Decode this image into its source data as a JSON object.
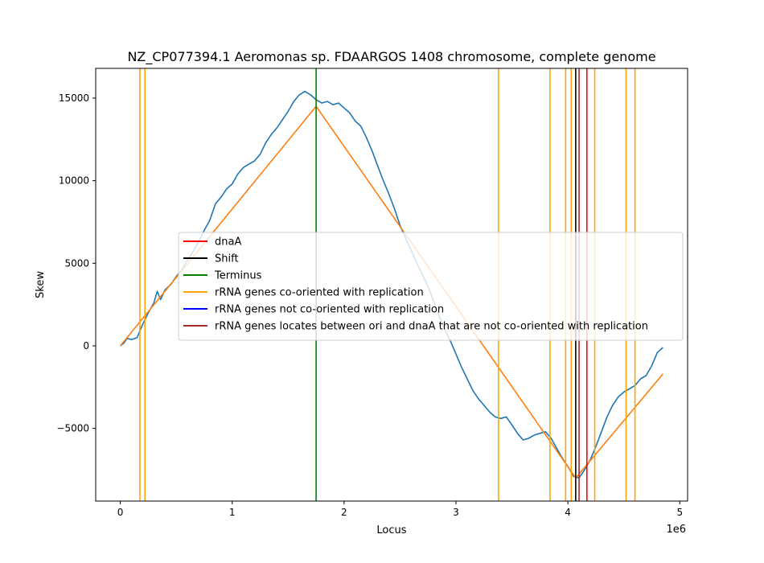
{
  "chart_data": {
    "type": "line",
    "title": "NZ_CP077394.1 Aeromonas sp. FDAARGOS 1408 chromosome, complete genome",
    "xlabel": "Locus",
    "ylabel": "Skew",
    "x_offset_label": "1e6",
    "xlim": [
      -220000,
      5070000
    ],
    "ylim": [
      -9400,
      16800
    ],
    "x_ticks": [
      0,
      1000000,
      2000000,
      3000000,
      4000000,
      5000000
    ],
    "x_tick_labels": [
      "0",
      "1",
      "2",
      "3",
      "4",
      "5"
    ],
    "y_ticks": [
      -5000,
      0,
      5000,
      10000,
      15000
    ],
    "y_tick_labels": [
      "−5000",
      "0",
      "5000",
      "10000",
      "15000"
    ],
    "grid": false,
    "legend_placement": "center",
    "series": [
      {
        "color": "#1f77b4",
        "points": [
          [
            0,
            0
          ],
          [
            30000,
            150
          ],
          [
            60000,
            450
          ],
          [
            100000,
            380
          ],
          [
            150000,
            500
          ],
          [
            200000,
            1300
          ],
          [
            250000,
            2000
          ],
          [
            300000,
            2600
          ],
          [
            330000,
            3300
          ],
          [
            360000,
            2800
          ],
          [
            400000,
            3400
          ],
          [
            450000,
            3700
          ],
          [
            500000,
            4200
          ],
          [
            550000,
            4600
          ],
          [
            600000,
            5200
          ],
          [
            650000,
            5700
          ],
          [
            700000,
            6300
          ],
          [
            750000,
            7000
          ],
          [
            800000,
            7600
          ],
          [
            850000,
            8600
          ],
          [
            900000,
            9000
          ],
          [
            950000,
            9500
          ],
          [
            1000000,
            9800
          ],
          [
            1050000,
            10400
          ],
          [
            1100000,
            10800
          ],
          [
            1150000,
            11000
          ],
          [
            1200000,
            11200
          ],
          [
            1250000,
            11600
          ],
          [
            1300000,
            12300
          ],
          [
            1350000,
            12800
          ],
          [
            1400000,
            13200
          ],
          [
            1450000,
            13700
          ],
          [
            1500000,
            14200
          ],
          [
            1550000,
            14800
          ],
          [
            1600000,
            15200
          ],
          [
            1650000,
            15400
          ],
          [
            1700000,
            15200
          ],
          [
            1750000,
            14900
          ],
          [
            1800000,
            14700
          ],
          [
            1850000,
            14800
          ],
          [
            1900000,
            14600
          ],
          [
            1950000,
            14700
          ],
          [
            2000000,
            14400
          ],
          [
            2050000,
            14100
          ],
          [
            2100000,
            13600
          ],
          [
            2150000,
            13300
          ],
          [
            2200000,
            12600
          ],
          [
            2250000,
            11800
          ],
          [
            2300000,
            10900
          ],
          [
            2350000,
            10000
          ],
          [
            2400000,
            9200
          ],
          [
            2450000,
            8300
          ],
          [
            2500000,
            7300
          ],
          [
            2550000,
            6500
          ],
          [
            2600000,
            5800
          ],
          [
            2650000,
            5000
          ],
          [
            2700000,
            4300
          ],
          [
            2750000,
            3600
          ],
          [
            2800000,
            2700
          ],
          [
            2850000,
            1800
          ],
          [
            2900000,
            1000
          ],
          [
            2950000,
            300
          ],
          [
            3000000,
            -500
          ],
          [
            3050000,
            -1300
          ],
          [
            3100000,
            -2000
          ],
          [
            3150000,
            -2700
          ],
          [
            3200000,
            -3200
          ],
          [
            3250000,
            -3600
          ],
          [
            3300000,
            -4000
          ],
          [
            3350000,
            -4300
          ],
          [
            3400000,
            -4400
          ],
          [
            3450000,
            -4300
          ],
          [
            3500000,
            -4800
          ],
          [
            3550000,
            -5300
          ],
          [
            3600000,
            -5700
          ],
          [
            3650000,
            -5600
          ],
          [
            3700000,
            -5400
          ],
          [
            3750000,
            -5300
          ],
          [
            3800000,
            -5200
          ],
          [
            3850000,
            -5600
          ],
          [
            3900000,
            -6200
          ],
          [
            3950000,
            -6800
          ],
          [
            4000000,
            -7300
          ],
          [
            4050000,
            -7900
          ],
          [
            4100000,
            -8000
          ],
          [
            4150000,
            -7500
          ],
          [
            4200000,
            -6900
          ],
          [
            4250000,
            -6100
          ],
          [
            4300000,
            -5200
          ],
          [
            4350000,
            -4300
          ],
          [
            4400000,
            -3600
          ],
          [
            4450000,
            -3100
          ],
          [
            4500000,
            -2800
          ],
          [
            4550000,
            -2600
          ],
          [
            4600000,
            -2400
          ],
          [
            4650000,
            -2000
          ],
          [
            4700000,
            -1800
          ],
          [
            4750000,
            -1200
          ],
          [
            4800000,
            -400
          ],
          [
            4850000,
            -100
          ]
        ]
      },
      {
        "color": "#ff7f0e",
        "points": [
          [
            0,
            0
          ],
          [
            1750000,
            14500
          ],
          [
            4070000,
            -8000
          ],
          [
            4850000,
            -1700
          ]
        ]
      }
    ],
    "vlines": [
      {
        "x": 175000,
        "color": "#ffa500"
      },
      {
        "x": 220000,
        "color": "#ffa500"
      },
      {
        "x": 3380000,
        "color": "#ffa500"
      },
      {
        "x": 3840000,
        "color": "#ffa500"
      },
      {
        "x": 3980000,
        "color": "#ffa500"
      },
      {
        "x": 4030000,
        "color": "#ffa500"
      },
      {
        "x": 4240000,
        "color": "#ffa500"
      },
      {
        "x": 4520000,
        "color": "#ffa500"
      },
      {
        "x": 4600000,
        "color": "#ffa500"
      },
      {
        "x": 1750000,
        "color": "#008000"
      },
      {
        "x": 4070000,
        "color": "#000000"
      },
      {
        "x": 4100000,
        "color": "#a52a2a"
      },
      {
        "x": 4170000,
        "color": "#ff0000"
      }
    ],
    "legend": [
      {
        "label": "dnaA",
        "color": "#ff0000"
      },
      {
        "label": "Shift",
        "color": "#000000"
      },
      {
        "label": "Terminus",
        "color": "#008000"
      },
      {
        "label": "rRNA genes co-oriented with replication",
        "color": "#ffa500"
      },
      {
        "label": "rRNA genes not co-oriented with replication",
        "color": "#0000ff"
      },
      {
        "label": "rRNA genes locates between ori and dnaA that are not co-oriented with replication",
        "color": "#a52a2a"
      }
    ]
  }
}
